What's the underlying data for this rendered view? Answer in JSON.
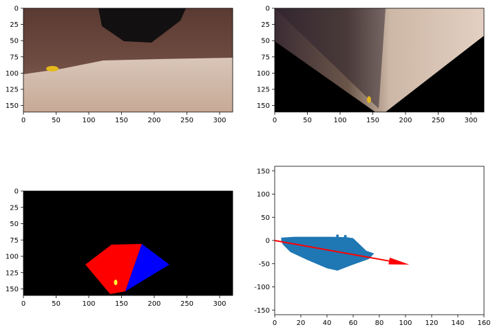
{
  "chart_data": [
    {
      "type": "image",
      "panel": "top-left",
      "content": "rover camera view: rock wall, sandy ground, yellow rock sample",
      "xlim": [
        0,
        320
      ],
      "ylim": [
        160,
        0
      ],
      "xticks": [
        0,
        50,
        100,
        150,
        200,
        250,
        300
      ],
      "yticks": [
        0,
        25,
        50,
        75,
        100,
        125,
        150
      ]
    },
    {
      "type": "image",
      "panel": "top-right",
      "content": "perspective-warped top-down view of the ground",
      "xlim": [
        0,
        320
      ],
      "ylim": [
        160,
        0
      ],
      "xticks": [
        0,
        50,
        100,
        150,
        200,
        250,
        300
      ],
      "yticks": [
        0,
        25,
        50,
        75,
        100,
        125,
        150
      ]
    },
    {
      "type": "image",
      "panel": "bottom-left",
      "content": "color-thresholded map: navigable (red), obstacle side (blue), rock sample (yellow) on black",
      "xlim": [
        0,
        320
      ],
      "ylim": [
        160,
        0
      ],
      "xticks": [
        0,
        50,
        100,
        150,
        200,
        250,
        300
      ],
      "yticks": [
        0,
        25,
        50,
        75,
        100,
        125,
        150
      ],
      "colors": {
        "navigable": "#ff0000",
        "obstacle": "#0000ff",
        "rock": "#ffff00",
        "background": "#000000"
      }
    },
    {
      "type": "scatter",
      "panel": "bottom-right",
      "xlim": [
        0,
        160
      ],
      "ylim": [
        -160,
        160
      ],
      "xticks": [
        0,
        20,
        40,
        60,
        80,
        100,
        120,
        140,
        160
      ],
      "yticks": [
        -150,
        -100,
        -50,
        0,
        50,
        100,
        150
      ],
      "point_cloud_outline": [
        [
          5,
          6
        ],
        [
          15,
          8
        ],
        [
          30,
          8
        ],
        [
          44,
          8
        ],
        [
          55,
          7
        ],
        [
          60,
          5
        ],
        [
          70,
          -22
        ],
        [
          76,
          -28
        ],
        [
          72,
          -40
        ],
        [
          60,
          -52
        ],
        [
          48,
          -65
        ],
        [
          40,
          -60
        ],
        [
          25,
          -42
        ],
        [
          12,
          -25
        ],
        [
          6,
          -8
        ],
        [
          5,
          0
        ]
      ],
      "extra_points": [
        [
          48,
          10
        ],
        [
          54,
          9
        ]
      ],
      "point_color": "#1f77b4",
      "arrow": {
        "from": [
          0,
          0
        ],
        "to": [
          103,
          -52
        ],
        "color": "#ff0000"
      }
    }
  ]
}
